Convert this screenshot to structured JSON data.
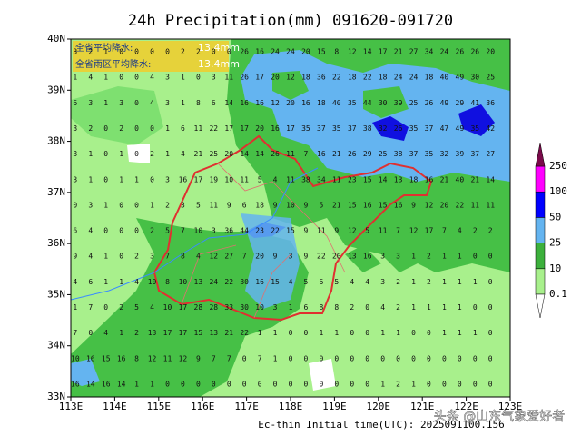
{
  "title": "24h Precipitation(mm) 091620-091720",
  "summary": [
    {
      "label": "全省平均降水:",
      "value": "13.4mm"
    },
    {
      "label": "全省雨区平均降水:",
      "value": "13.4mm"
    }
  ],
  "yticks": [
    {
      "value": 33,
      "label": "33N"
    },
    {
      "value": 34,
      "label": "34N"
    },
    {
      "value": 35,
      "label": "35N"
    },
    {
      "value": 36,
      "label": "36N"
    },
    {
      "value": 37,
      "label": "37N"
    },
    {
      "value": 38,
      "label": "38N"
    },
    {
      "value": 39,
      "label": "39N"
    },
    {
      "value": 40,
      "label": "40N"
    }
  ],
  "xticks": [
    {
      "value": 113,
      "label": "113E"
    },
    {
      "value": 114,
      "label": "114E"
    },
    {
      "value": 115,
      "label": "115E"
    },
    {
      "value": 116,
      "label": "116E"
    },
    {
      "value": 117,
      "label": "117E"
    },
    {
      "value": 118,
      "label": "118E"
    },
    {
      "value": 119,
      "label": "119E"
    },
    {
      "value": 120,
      "label": "120E"
    },
    {
      "value": 121,
      "label": "121E"
    },
    {
      "value": 122,
      "label": "122E"
    },
    {
      "value": 123,
      "label": "123E"
    }
  ],
  "colorbar": {
    "levels": [
      0.1,
      10,
      25,
      50,
      100,
      250
    ],
    "colors": [
      "#ffffff",
      "#a8f08c",
      "#3cb03c",
      "#64b4f0",
      "#0000ff",
      "#ff00ff",
      "#7a0a4a"
    ]
  },
  "stations": [
    {
      "lat": 39.75,
      "lon": 113.1,
      "values": [
        3,
        2,
        1,
        0,
        0,
        0,
        0,
        2,
        2,
        0,
        0,
        26,
        16,
        24,
        24,
        20,
        15,
        8,
        12,
        14,
        17,
        21,
        27,
        34,
        24,
        26,
        26,
        20
      ]
    },
    {
      "lat": 39.25,
      "lon": 113.1,
      "values": [
        1,
        4,
        1,
        0,
        0,
        4,
        3,
        1,
        0,
        3,
        11,
        26,
        17,
        20,
        12,
        18,
        36,
        22,
        18,
        22,
        18,
        24,
        24,
        18,
        40,
        49,
        30,
        25
      ]
    },
    {
      "lat": 38.75,
      "lon": 113.1,
      "values": [
        6,
        3,
        1,
        3,
        0,
        4,
        3,
        1,
        8,
        6,
        14,
        16,
        16,
        12,
        20,
        16,
        18,
        40,
        35,
        44,
        30,
        39,
        25,
        26,
        49,
        29,
        41,
        36
      ]
    },
    {
      "lat": 38.25,
      "lon": 113.1,
      "values": [
        3,
        2,
        0,
        2,
        0,
        0,
        1,
        6,
        11,
        22,
        17,
        17,
        20,
        16,
        17,
        35,
        37,
        35,
        37,
        38,
        32,
        26,
        35,
        37,
        47,
        49,
        35,
        42
      ]
    },
    {
      "lat": 37.75,
      "lon": 113.1,
      "values": [
        3,
        1,
        0,
        1,
        0,
        2,
        1,
        4,
        21,
        25,
        20,
        14,
        14,
        26,
        11,
        7,
        16,
        21,
        26,
        29,
        25,
        38,
        37,
        35,
        32,
        39,
        37,
        27
      ]
    },
    {
      "lat": 37.25,
      "lon": 113.1,
      "values": [
        3,
        1,
        0,
        1,
        1,
        0,
        3,
        16,
        17,
        19,
        10,
        11,
        5,
        4,
        11,
        38,
        34,
        11,
        23,
        15,
        14,
        13,
        18,
        16,
        21,
        40,
        21,
        14
      ]
    },
    {
      "lat": 36.75,
      "lon": 113.1,
      "values": [
        0,
        3,
        1,
        0,
        0,
        1,
        2,
        3,
        5,
        11,
        9,
        6,
        18,
        9,
        10,
        9,
        5,
        21,
        15,
        16,
        15,
        16,
        9,
        12,
        20,
        22,
        11,
        11
      ]
    },
    {
      "lat": 36.25,
      "lon": 113.1,
      "values": [
        6,
        4,
        0,
        0,
        0,
        2,
        5,
        7,
        10,
        3,
        36,
        44,
        23,
        22,
        15,
        9,
        11,
        9,
        12,
        5,
        11,
        7,
        12,
        17,
        7,
        4,
        2,
        2
      ]
    },
    {
      "lat": 35.75,
      "lon": 113.1,
      "values": [
        9,
        4,
        1,
        0,
        2,
        3,
        7,
        8,
        4,
        12,
        27,
        7,
        20,
        9,
        3,
        9,
        22,
        20,
        13,
        16,
        3,
        3,
        1,
        2,
        1,
        1,
        0,
        0
      ]
    },
    {
      "lat": 35.25,
      "lon": 113.1,
      "values": [
        4,
        6,
        1,
        1,
        4,
        10,
        8,
        10,
        13,
        24,
        22,
        30,
        16,
        15,
        4,
        5,
        6,
        5,
        4,
        4,
        3,
        2,
        1,
        2,
        1,
        1,
        1,
        0
      ]
    },
    {
      "lat": 34.75,
      "lon": 113.1,
      "values": [
        1,
        7,
        0,
        2,
        5,
        4,
        10,
        17,
        28,
        28,
        33,
        30,
        10,
        3,
        1,
        6,
        8,
        8,
        2,
        0,
        4,
        2,
        1,
        1,
        1,
        1,
        0,
        0
      ]
    },
    {
      "lat": 34.25,
      "lon": 113.1,
      "values": [
        7,
        0,
        4,
        1,
        2,
        13,
        17,
        17,
        15,
        13,
        21,
        22,
        1,
        1,
        0,
        0,
        1,
        1,
        0,
        0,
        1,
        1,
        0,
        0,
        1,
        1,
        1,
        0
      ]
    },
    {
      "lat": 33.75,
      "lon": 113.1,
      "values": [
        10,
        16,
        15,
        16,
        8,
        12,
        11,
        12,
        9,
        7,
        7,
        0,
        7,
        1,
        0,
        0,
        0,
        0,
        0,
        0,
        0,
        0,
        0,
        0,
        0,
        0,
        0,
        0
      ]
    },
    {
      "lat": 33.25,
      "lon": 113.1,
      "values": [
        16,
        14,
        16,
        14,
        1,
        1,
        0,
        0,
        0,
        0,
        0,
        0,
        0,
        0,
        0,
        0,
        0,
        0,
        0,
        0,
        1,
        2,
        1,
        0,
        0,
        0,
        0,
        0
      ]
    }
  ],
  "footer": "Ec-thin  Initial time(UTC): 2025091100.156",
  "watermark": "头条 @山东气象爱好者"
}
